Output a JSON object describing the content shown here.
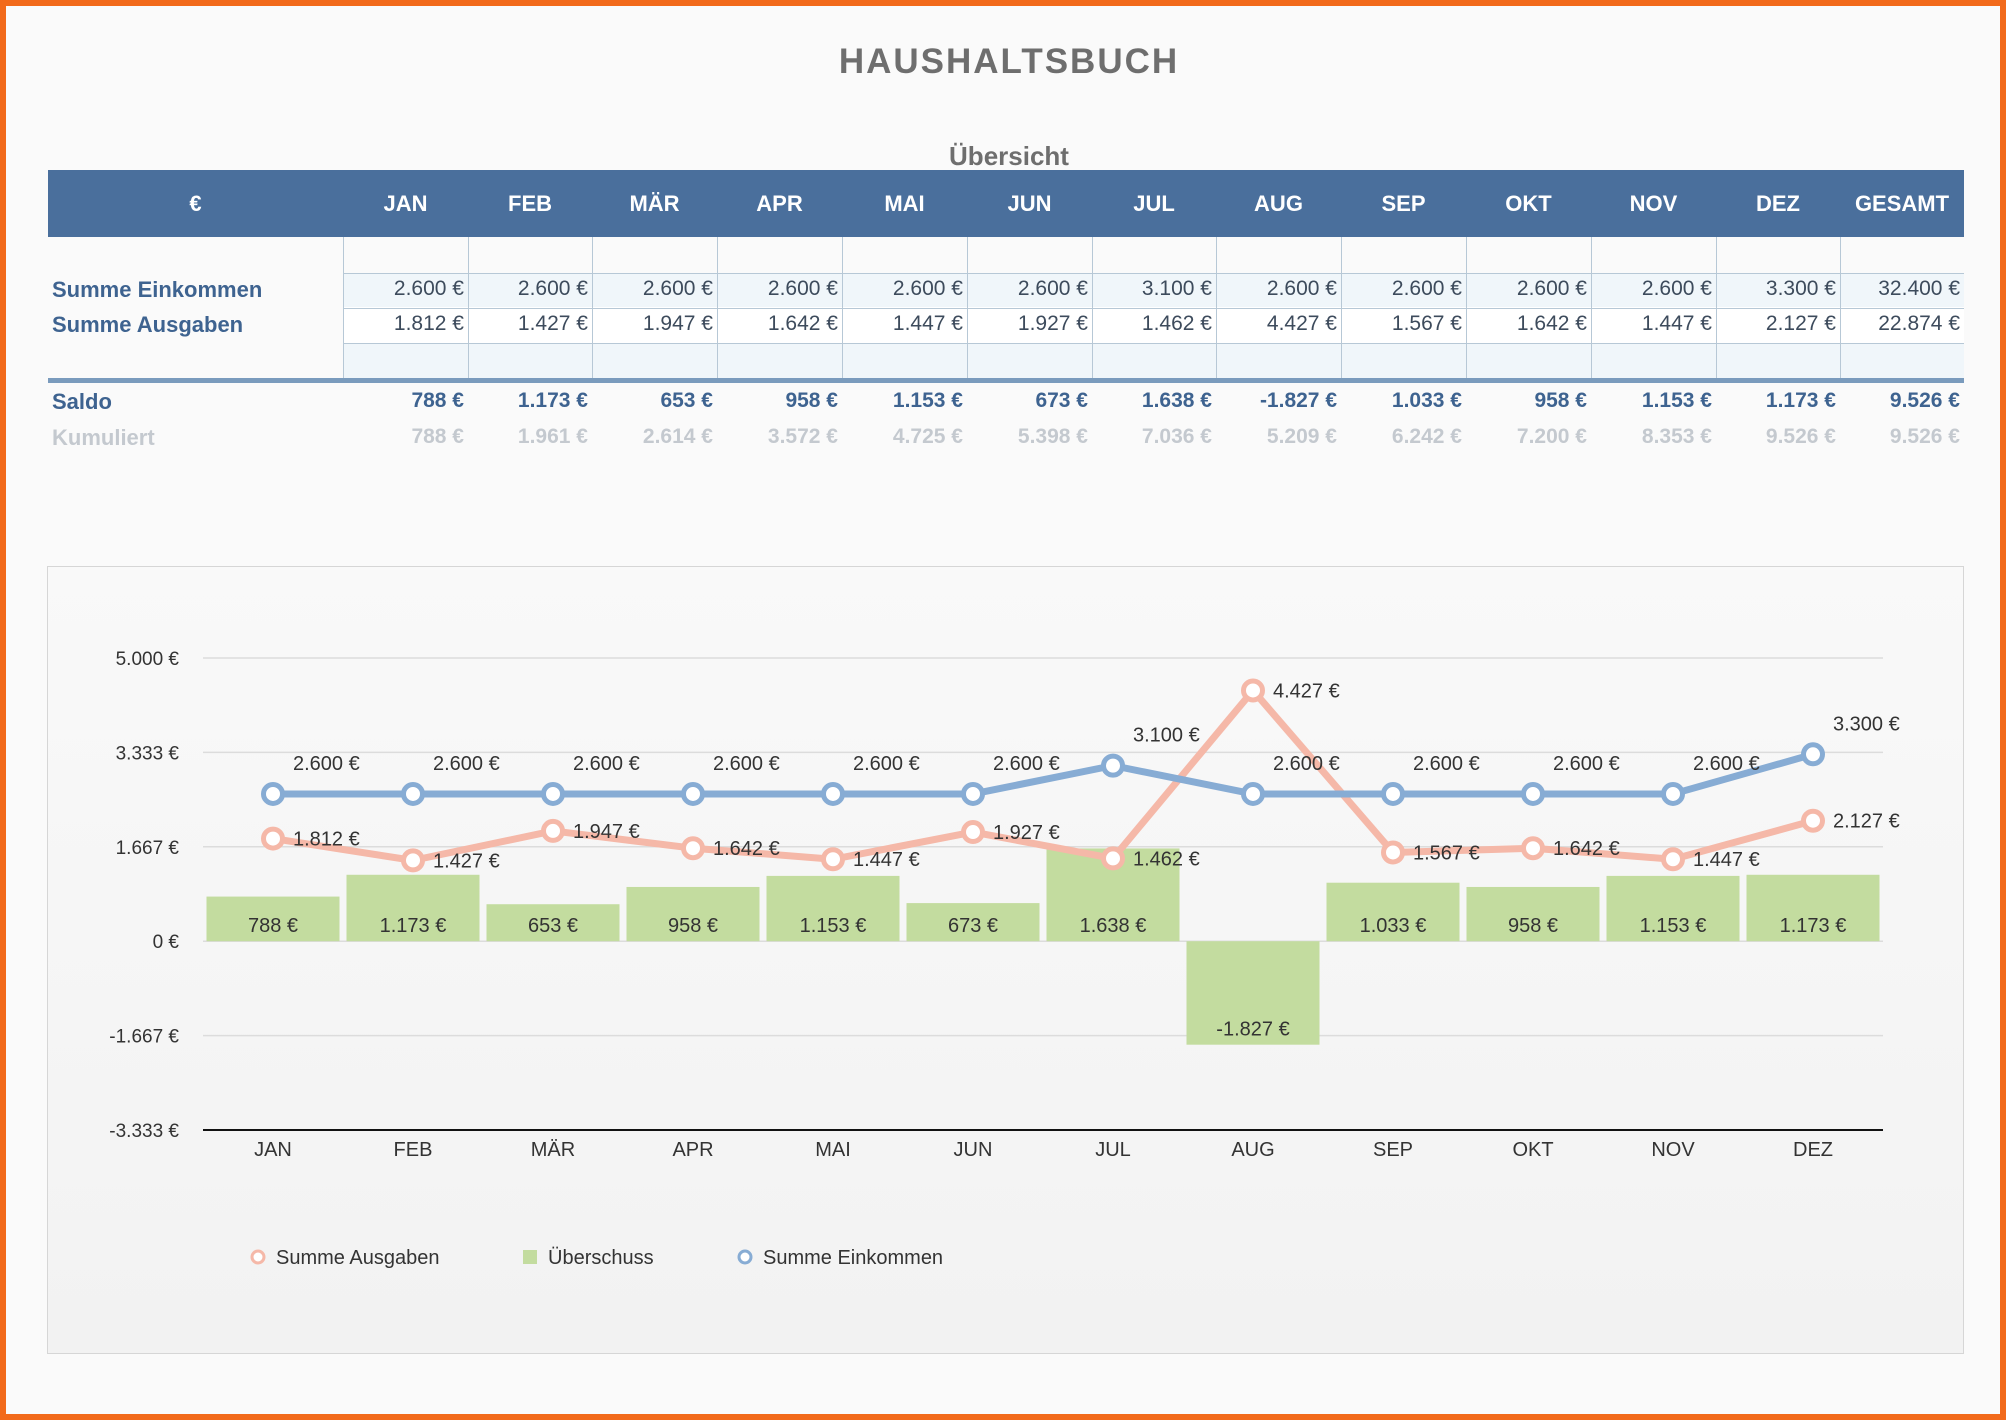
{
  "page": {
    "title": "HAUSHALTSBUCH",
    "subtitle": "Übersicht"
  },
  "table": {
    "corner": "€",
    "months": [
      "JAN",
      "FEB",
      "MÄR",
      "APR",
      "MAI",
      "JUN",
      "JUL",
      "AUG",
      "SEP",
      "OKT",
      "NOV",
      "DEZ"
    ],
    "total_header": "GESAMT",
    "rows": [
      {
        "label": "Summe Einkommen",
        "cells": [
          "2.600 €",
          "2.600 €",
          "2.600 €",
          "2.600 €",
          "2.600 €",
          "2.600 €",
          "3.100 €",
          "2.600 €",
          "2.600 €",
          "2.600 €",
          "2.600 €",
          "3.300 €",
          "32.400 €"
        ]
      },
      {
        "label": "Summe Ausgaben",
        "cells": [
          "1.812 €",
          "1.427 €",
          "1.947 €",
          "1.642 €",
          "1.447 €",
          "1.927 €",
          "1.462 €",
          "4.427 €",
          "1.567 €",
          "1.642 €",
          "1.447 €",
          "2.127 €",
          "22.874 €"
        ]
      },
      {
        "label": "Saldo",
        "cells": [
          "788 €",
          "1.173 €",
          "653 €",
          "958 €",
          "1.153 €",
          "673 €",
          "1.638 €",
          "-1.827 €",
          "1.033 €",
          "958 €",
          "1.153 €",
          "1.173 €",
          "9.526 €"
        ]
      },
      {
        "label": "Kumuliert",
        "cells": [
          "788 €",
          "1.961 €",
          "2.614 €",
          "3.572 €",
          "4.725 €",
          "5.398 €",
          "7.036 €",
          "5.209 €",
          "6.242 €",
          "7.200 €",
          "8.353 €",
          "9.526 €",
          "9.526 €"
        ]
      }
    ]
  },
  "chart_data": {
    "type": "bar",
    "categories": [
      "JAN",
      "FEB",
      "MÄR",
      "APR",
      "MAI",
      "JUN",
      "JUL",
      "AUG",
      "SEP",
      "OKT",
      "NOV",
      "DEZ"
    ],
    "ylim": [
      -3333,
      5000
    ],
    "yticks": [
      5000,
      3333,
      1667,
      0,
      -1667,
      -3333
    ],
    "ytick_labels": [
      "5.000 €",
      "3.333 €",
      "1.667 €",
      "0 €",
      "-1.667 €",
      "-3.333 €"
    ],
    "grid": true,
    "legend_position": "bottom-left",
    "series": [
      {
        "name": "Summe Ausgaben",
        "type": "line",
        "color": "#f5b8a8",
        "values": [
          1812,
          1427,
          1947,
          1642,
          1447,
          1927,
          1462,
          4427,
          1567,
          1642,
          1447,
          2127
        ],
        "labels": [
          "1.812 €",
          "1.427 €",
          "1.947 €",
          "1.642 €",
          "1.447 €",
          "1.927 €",
          "1.462 €",
          "4.427 €",
          "1.567 €",
          "1.642 €",
          "1.447 €",
          "2.127 €"
        ]
      },
      {
        "name": "Überschuss",
        "type": "bar",
        "color": "#c3dc9f",
        "values": [
          788,
          1173,
          653,
          958,
          1153,
          673,
          1638,
          -1827,
          1033,
          958,
          1153,
          1173
        ],
        "labels": [
          "788 €",
          "1.173 €",
          "653 €",
          "958 €",
          "1.153 €",
          "673 €",
          "1.638 €",
          "-1.827 €",
          "1.033 €",
          "958 €",
          "1.153 €",
          "1.173 €"
        ]
      },
      {
        "name": "Summe Einkommen",
        "type": "line",
        "color": "#87acd4",
        "values": [
          2600,
          2600,
          2600,
          2600,
          2600,
          2600,
          3100,
          2600,
          2600,
          2600,
          2600,
          3300
        ],
        "labels": [
          "2.600 €",
          "2.600 €",
          "2.600 €",
          "2.600 €",
          "2.600 €",
          "2.600 €",
          "3.100 €",
          "2.600 €",
          "2.600 €",
          "2.600 €",
          "2.600 €",
          "3.300 €"
        ]
      }
    ]
  }
}
